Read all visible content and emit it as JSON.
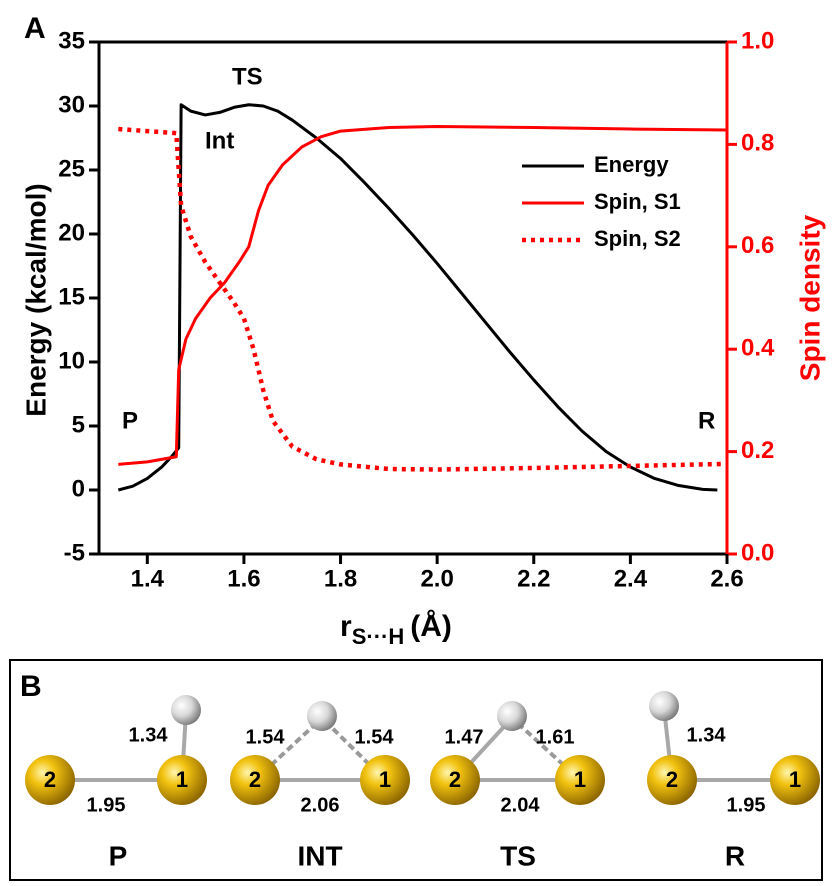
{
  "chart_data": {
    "type": "line",
    "panel_label": "A",
    "xlabel": "r",
    "xlabel_subscript": "S···H",
    "xlabel_unit": "(Å)",
    "ylabel": "Energy (kcal/mol)",
    "y2label": "Spin density",
    "y2color": "#ff0000",
    "xlim": [
      1.3,
      2.6
    ],
    "xticks": [
      1.4,
      1.6,
      1.8,
      {
        "value": 2,
        "label": "2.0"
      },
      2.2,
      2.4,
      2.6
    ],
    "ylim": [
      -5,
      35
    ],
    "yticks": [
      -5,
      0,
      5,
      10,
      15,
      20,
      25,
      30,
      35
    ],
    "y2lim": [
      0,
      1
    ],
    "y2ticks": [
      {
        "value": 0,
        "label": "0.0"
      },
      0.2,
      0.4,
      0.6,
      0.8,
      {
        "value": 1,
        "label": "1.0"
      }
    ],
    "legend": "upper right",
    "annotations": [
      "P",
      "Int",
      "TS",
      "R"
    ],
    "series": [
      {
        "name": "Energy",
        "color": "#000000",
        "linestyle": "solid",
        "axis": "y",
        "x": [
          1.34,
          1.37,
          1.4,
          1.43,
          1.45,
          1.465,
          1.47,
          1.49,
          1.52,
          1.55,
          1.58,
          1.61,
          1.64,
          1.67,
          1.7,
          1.75,
          1.8,
          1.85,
          1.9,
          1.95,
          2.0,
          2.05,
          2.1,
          2.15,
          2.2,
          2.25,
          2.3,
          2.35,
          2.4,
          2.45,
          2.5,
          2.55,
          2.58
        ],
        "values": [
          0,
          0.3,
          0.9,
          1.8,
          2.6,
          3.3,
          30.1,
          29.6,
          29.3,
          29.5,
          29.9,
          30.1,
          30.0,
          29.6,
          28.9,
          27.5,
          25.9,
          24.0,
          22.0,
          19.9,
          17.7,
          15.4,
          13.1,
          10.8,
          8.6,
          6.5,
          4.6,
          3.0,
          1.8,
          0.9,
          0.35,
          0.05,
          0
        ]
      },
      {
        "name": "Spin, S1",
        "color": "#ff0000",
        "linestyle": "solid",
        "axis": "y2",
        "x": [
          1.34,
          1.4,
          1.46,
          1.465,
          1.48,
          1.5,
          1.53,
          1.56,
          1.59,
          1.61,
          1.63,
          1.65,
          1.68,
          1.72,
          1.76,
          1.8,
          1.9,
          2.0,
          2.2,
          2.4,
          2.6
        ],
        "values": [
          0.175,
          0.18,
          0.19,
          0.36,
          0.42,
          0.46,
          0.5,
          0.53,
          0.57,
          0.6,
          0.67,
          0.72,
          0.76,
          0.795,
          0.815,
          0.826,
          0.833,
          0.835,
          0.833,
          0.83,
          0.828
        ]
      },
      {
        "name": "Spin, S2",
        "color": "#ff0000",
        "linestyle": "dotted",
        "axis": "y2",
        "x": [
          1.34,
          1.4,
          1.46,
          1.47,
          1.49,
          1.52,
          1.55,
          1.58,
          1.6,
          1.62,
          1.64,
          1.66,
          1.7,
          1.75,
          1.8,
          1.9,
          2.0,
          2.2,
          2.4,
          2.6
        ],
        "values": [
          0.83,
          0.826,
          0.822,
          0.68,
          0.62,
          0.57,
          0.53,
          0.49,
          0.46,
          0.4,
          0.32,
          0.26,
          0.21,
          0.185,
          0.175,
          0.166,
          0.165,
          0.168,
          0.172,
          0.176
        ]
      }
    ]
  },
  "diagram": {
    "label": "B",
    "structures": [
      {
        "name": "P",
        "atoms": [
          "2",
          "1"
        ],
        "bonds": [
          1.34,
          1.95
        ]
      },
      {
        "name": "INT",
        "atoms": [
          "2",
          "1"
        ],
        "bonds": [
          1.54,
          1.54,
          2.06
        ]
      },
      {
        "name": "TS",
        "atoms": [
          "2",
          "1"
        ],
        "bonds": [
          1.47,
          1.61,
          2.04
        ]
      },
      {
        "name": "R",
        "atoms": [
          "2",
          "1"
        ],
        "bonds": [
          1.34,
          1.95
        ]
      }
    ]
  }
}
